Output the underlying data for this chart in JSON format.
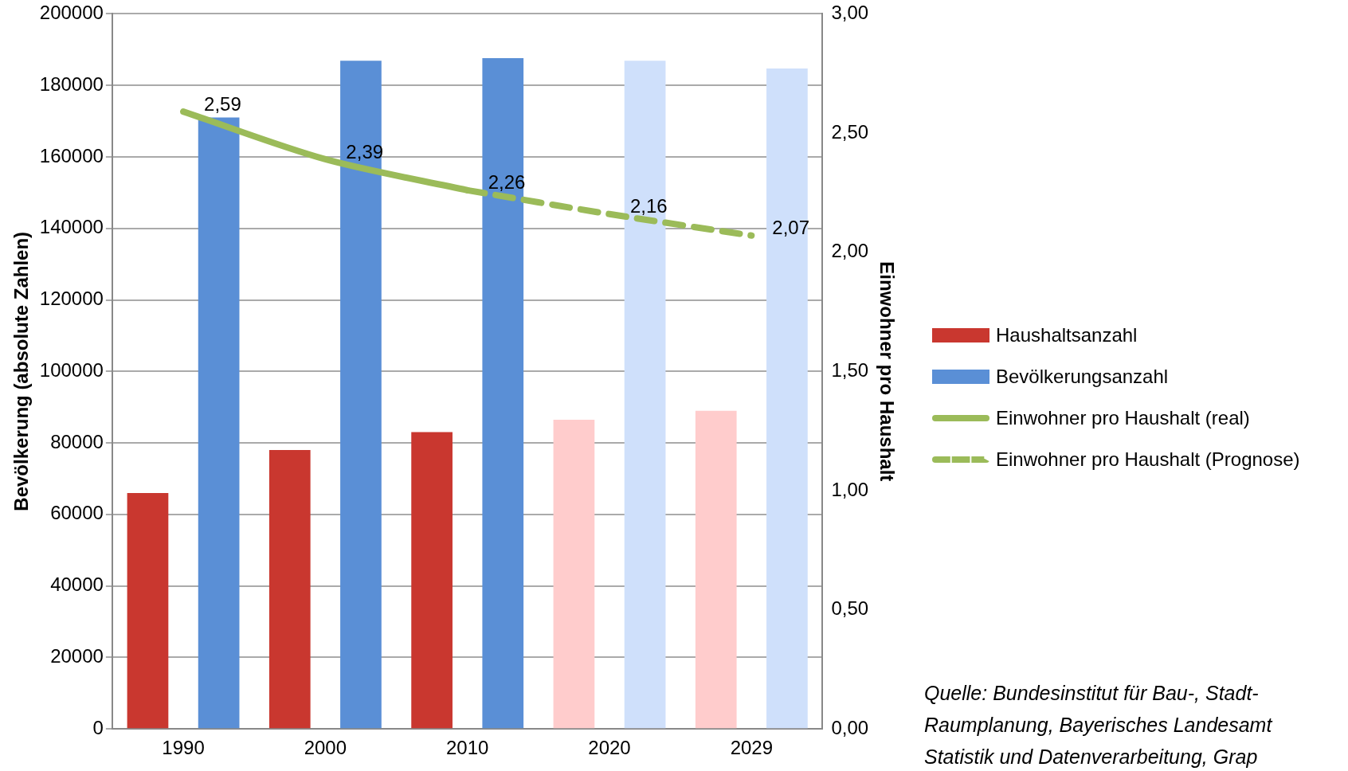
{
  "chart_data": {
    "type": "bar",
    "categories": [
      "1990",
      "2000",
      "2010",
      "2020",
      "2029"
    ],
    "ylabel": "Bevölkerung (absolute Zahlen)",
    "y2label": "Einwohner pro Haushalt",
    "ylim": [
      0,
      200000
    ],
    "yticks": [
      0,
      20000,
      40000,
      60000,
      80000,
      100000,
      120000,
      140000,
      160000,
      180000,
      200000
    ],
    "y2lim": [
      0,
      3
    ],
    "y2ticks": [
      {
        "value": 0,
        "label": "0,00"
      },
      {
        "value": 0.5,
        "label": "0,50"
      },
      {
        "value": 1,
        "label": "1,00"
      },
      {
        "value": 1.5,
        "label": "1,50"
      },
      {
        "value": 2,
        "label": "2,00"
      },
      {
        "value": 2.5,
        "label": "2,50"
      },
      {
        "value": 3,
        "label": "3,00"
      }
    ],
    "grid": "y",
    "legend": "right",
    "marker": "none",
    "series": [
      {
        "name": "Haushaltsanzahl",
        "color": "#c9372f",
        "colors": [
          "#c9372f",
          "#c9372f",
          "#c9372f",
          "#ffcccc",
          "#ffcccc"
        ],
        "values": [
          66000,
          78000,
          83000,
          86500,
          89000
        ]
      },
      {
        "name": "Bevölkerungsanzahl",
        "color": "#5a8fd6",
        "colors": [
          "#5a8fd6",
          "#5a8fd6",
          "#5a8fd6",
          "#cfe0fb",
          "#cfe0fb"
        ],
        "values": [
          171000,
          186900,
          187600,
          186900,
          184700
        ]
      },
      {
        "name": "Einwohner pro Haushalt (real)",
        "type": "line",
        "axis": "y2",
        "line_style": "solid",
        "color": "#9bbb59",
        "values": [
          2.59,
          2.39,
          2.26,
          null,
          null
        ],
        "value_labels": [
          "2,59",
          "2,39",
          "2,26",
          null,
          null
        ]
      },
      {
        "name": "Einwohner pro Haushalt (Prognose)",
        "type": "line",
        "axis": "y2",
        "line_style": "dashed",
        "color": "#9bbb59",
        "values": [
          null,
          null,
          2.26,
          2.16,
          2.07
        ],
        "value_labels": [
          null,
          null,
          null,
          "2,16",
          "2,07"
        ]
      }
    ],
    "annotations": [
      "Quelle: Bundesinstitut für Bau-, Stadt- Raumplanung, Bayerisches Landesamt Statistik und Datenverarbeitung, Grap"
    ]
  }
}
